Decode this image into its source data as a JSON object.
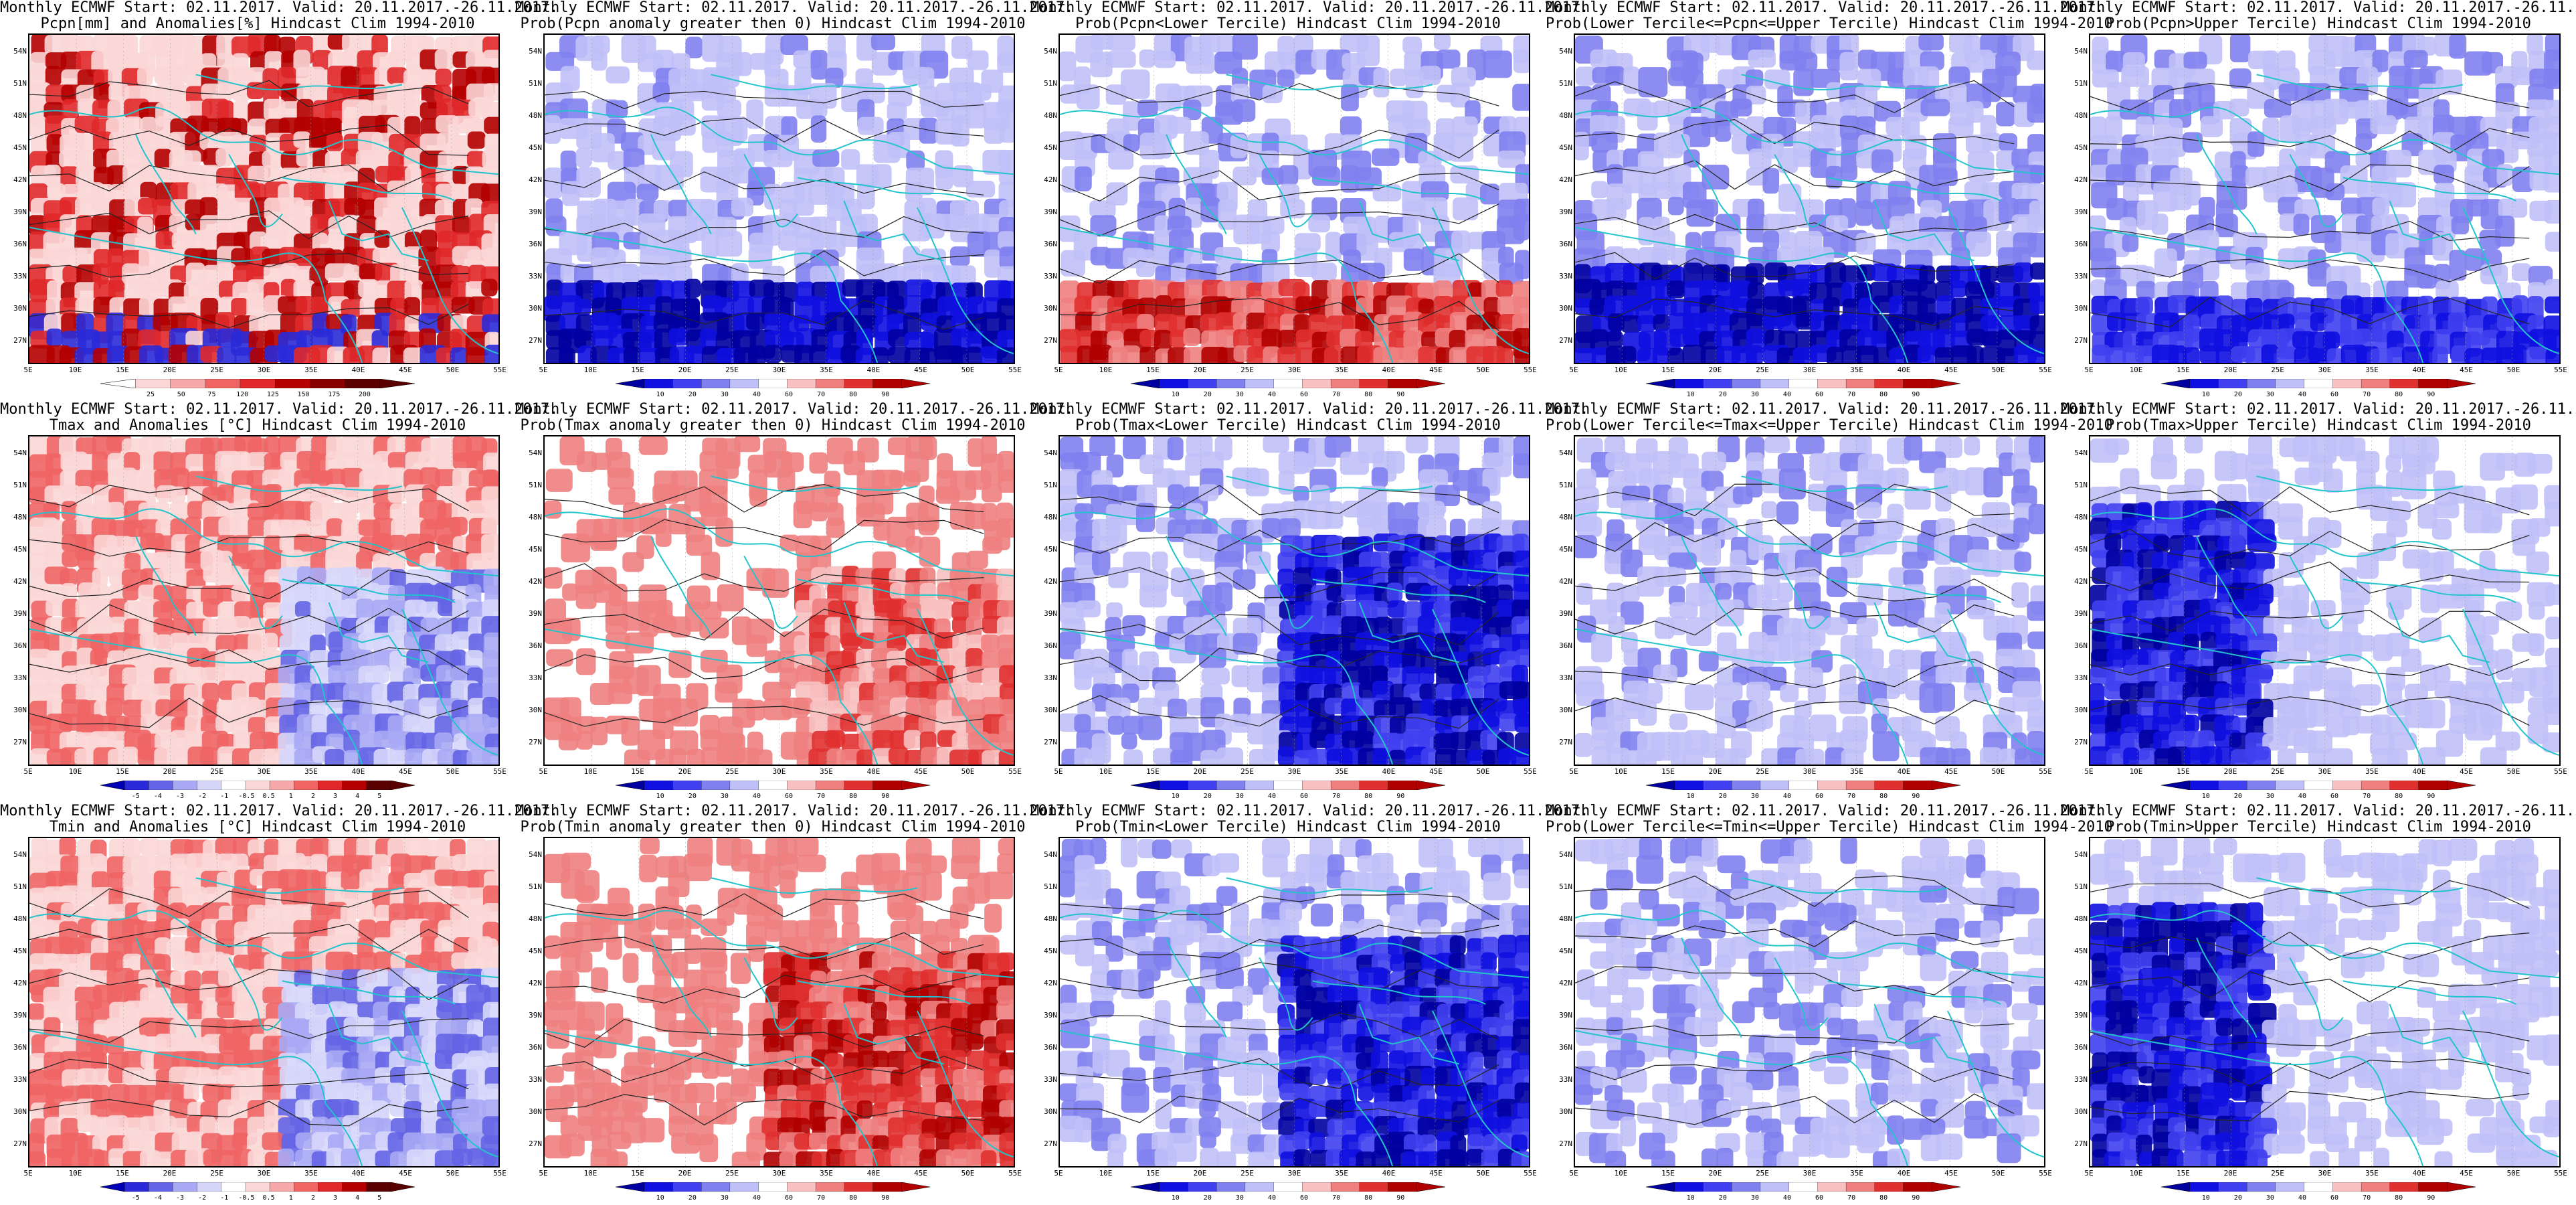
{
  "header_line": "Monthly ECMWF Start: 02.11.2017. Valid: 20.11.2017.-26.11.2017.",
  "lat_labels": [
    "54N",
    "51N",
    "48N",
    "45N",
    "42N",
    "39N",
    "36N",
    "33N",
    "30N",
    "27N"
  ],
  "lon_labels": [
    "5E",
    "10E",
    "15E",
    "20E",
    "25E",
    "30E",
    "35E",
    "40E",
    "45E",
    "50E",
    "55E"
  ],
  "colors": {
    "ocean": "#d8ebf6",
    "coast": "#22c4cc",
    "contour": "#222222",
    "anomaly_scale": [
      "#5a0000",
      "#b40000",
      "#e0282a",
      "#f06464",
      "#f7a8a8",
      "#fbd6d6",
      "#ffffff",
      "#d6d6fb",
      "#a8a8f5",
      "#6464e6",
      "#2a2ad8",
      "#0000b4"
    ],
    "prob_scale": [
      "#0000a0",
      "#1010e0",
      "#4040f0",
      "#8080f0",
      "#c0c0f8",
      "#ffffff",
      "#f8c0c0",
      "#f08080",
      "#e03030",
      "#b00000"
    ]
  },
  "colorbar_ticks": {
    "pcpn": [
      "25",
      "50",
      "75",
      "120",
      "125",
      "150",
      "175",
      "200"
    ],
    "prob": [
      "10",
      "20",
      "30",
      "40",
      "60",
      "70",
      "80",
      "90"
    ],
    "temp": [
      "-5",
      "-4",
      "-3",
      "-2",
      "-1",
      "-0.5",
      "0.5",
      "1",
      "2",
      "3",
      "4",
      "5"
    ]
  },
  "panels": [
    {
      "row": 0,
      "col": 0,
      "subtitle": "Pcpn[mm] and Anomalies[%] Hindcast Clim 1994-2010",
      "scale": "pcpn",
      "pattern": "pcpn_anom"
    },
    {
      "row": 0,
      "col": 1,
      "subtitle": "Prob(Pcpn anomaly greater then 0) Hindcast Clim 1994-2010",
      "scale": "prob",
      "pattern": "blue_south"
    },
    {
      "row": 0,
      "col": 2,
      "subtitle": "Prob(Pcpn<Lower Tercile) Hindcast Clim 1994-2010",
      "scale": "prob",
      "pattern": "red_south"
    },
    {
      "row": 0,
      "col": 3,
      "subtitle": "Prob(Lower Tercile<=Pcpn<=Upper Tercile) Hindcast Clim 1994-2010",
      "scale": "prob",
      "pattern": "blue_south_deep"
    },
    {
      "row": 0,
      "col": 4,
      "subtitle": "Prob(Pcpn>Upper Tercile) Hindcast Clim 1994-2010",
      "scale": "prob",
      "pattern": "blue_mixed"
    },
    {
      "row": 1,
      "col": 0,
      "subtitle": "Tmax and Anomalies [°C] Hindcast Clim 1994-2010",
      "scale": "temp",
      "pattern": "red_east"
    },
    {
      "row": 1,
      "col": 1,
      "subtitle": "Prob(Tmax anomaly greater then 0) Hindcast Clim 1994-2010",
      "scale": "prob",
      "pattern": "red_east"
    },
    {
      "row": 1,
      "col": 2,
      "subtitle": "Prob(Tmax<Lower Tercile) Hindcast Clim 1994-2010",
      "scale": "prob",
      "pattern": "blue_east"
    },
    {
      "row": 1,
      "col": 3,
      "subtitle": "Prob(Lower Tercile<=Tmax<=Upper Tercile) Hindcast Clim 1994-2010",
      "scale": "prob",
      "pattern": "light_blue"
    },
    {
      "row": 1,
      "col": 4,
      "subtitle": "Prob(Tmax>Upper Tercile) Hindcast Clim 1994-2010",
      "scale": "prob",
      "pattern": "blue_west"
    },
    {
      "row": 2,
      "col": 0,
      "subtitle": "Tmin and Anomalies [°C] Hindcast Clim 1994-2010",
      "scale": "temp",
      "pattern": "red_east"
    },
    {
      "row": 2,
      "col": 1,
      "subtitle": "Prob(Tmin anomaly greater then 0) Hindcast Clim 1994-2010",
      "scale": "prob",
      "pattern": "red_east_strong"
    },
    {
      "row": 2,
      "col": 2,
      "subtitle": "Prob(Tmin<Lower Tercile) Hindcast Clim 1994-2010",
      "scale": "prob",
      "pattern": "blue_east"
    },
    {
      "row": 2,
      "col": 3,
      "subtitle": "Prob(Lower Tercile<=Tmin<=Upper Tercile) Hindcast Clim 1994-2010",
      "scale": "prob",
      "pattern": "light_blue"
    },
    {
      "row": 2,
      "col": 4,
      "subtitle": "Prob(Tmin>Upper Tercile) Hindcast Clim 1994-2010",
      "scale": "prob",
      "pattern": "blue_west"
    }
  ]
}
